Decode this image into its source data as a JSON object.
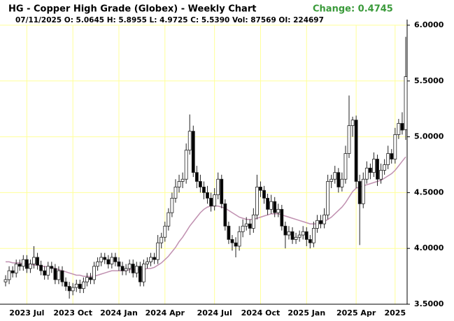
{
  "chart_data": {
    "type": "candlestick",
    "title": "HG - Copper High Grade (Globex) - Weekly Chart",
    "change": "Change: 0.4745",
    "subtitle": "07/11/2025 O: 5.0645 H: 5.8955 L: 4.9725 C: 5.5390 Vol: 87569 OI: 224697",
    "ylim": [
      3.5,
      6.0
    ],
    "yticks": [
      {
        "value": 3.5,
        "label": "3.5000"
      },
      {
        "value": 4.0,
        "label": "4.0000"
      },
      {
        "value": 4.5,
        "label": "4.5000"
      },
      {
        "value": 5.0,
        "label": "5.0000"
      },
      {
        "value": 5.5,
        "label": "5.5000"
      },
      {
        "value": 6.0,
        "label": "6.0000"
      }
    ],
    "grid": true,
    "up_color": "#ffffff",
    "down_color": "#000000",
    "grid_color": "#ffff99",
    "categories": [
      null,
      null,
      null,
      null,
      null,
      null,
      "2023 Jul",
      null,
      null,
      null,
      null,
      null,
      null,
      null,
      null,
      null,
      null,
      null,
      null,
      "2023 Oct",
      null,
      null,
      null,
      null,
      null,
      null,
      null,
      null,
      null,
      null,
      null,
      null,
      "2024 Jan",
      null,
      null,
      null,
      null,
      null,
      null,
      null,
      null,
      null,
      null,
      null,
      null,
      "2024 Apr",
      null,
      null,
      null,
      null,
      null,
      null,
      null,
      null,
      null,
      null,
      null,
      null,
      null,
      "2024 Jul",
      null,
      null,
      null,
      null,
      null,
      null,
      null,
      null,
      null,
      null,
      null,
      null,
      "2024 Oct",
      null,
      null,
      null,
      null,
      null,
      null,
      null,
      null,
      null,
      null,
      null,
      null,
      "2025 Jan",
      null,
      null,
      null,
      null,
      null,
      null,
      null,
      null,
      null,
      null,
      null,
      null,
      null,
      "2025 Apr",
      null,
      null,
      null,
      null,
      null,
      null,
      null,
      null,
      null,
      null,
      "2025",
      null,
      null,
      null
    ],
    "ohlc": [
      [
        3.7,
        3.76,
        3.66,
        3.72
      ],
      [
        3.72,
        3.84,
        3.68,
        3.8
      ],
      [
        3.8,
        3.84,
        3.74,
        3.78
      ],
      [
        3.78,
        3.9,
        3.74,
        3.86
      ],
      [
        3.86,
        3.9,
        3.8,
        3.84
      ],
      [
        3.84,
        3.94,
        3.8,
        3.9
      ],
      [
        3.9,
        3.94,
        3.78,
        3.82
      ],
      [
        3.82,
        3.9,
        3.78,
        3.86
      ],
      [
        3.86,
        4.02,
        3.82,
        3.92
      ],
      [
        3.92,
        3.96,
        3.81,
        3.85
      ],
      [
        3.85,
        3.89,
        3.76,
        3.8
      ],
      [
        3.8,
        3.84,
        3.72,
        3.76
      ],
      [
        3.76,
        3.88,
        3.72,
        3.84
      ],
      [
        3.84,
        3.88,
        3.78,
        3.82
      ],
      [
        3.82,
        3.86,
        3.68,
        3.72
      ],
      [
        3.72,
        3.84,
        3.68,
        3.8
      ],
      [
        3.8,
        3.84,
        3.66,
        3.7
      ],
      [
        3.7,
        3.74,
        3.62,
        3.66
      ],
      [
        3.66,
        3.7,
        3.55,
        3.62
      ],
      [
        3.62,
        3.69,
        3.58,
        3.65
      ],
      [
        3.65,
        3.72,
        3.61,
        3.68
      ],
      [
        3.68,
        3.72,
        3.6,
        3.64
      ],
      [
        3.64,
        3.74,
        3.6,
        3.7
      ],
      [
        3.7,
        3.78,
        3.66,
        3.74
      ],
      [
        3.74,
        3.78,
        3.68,
        3.72
      ],
      [
        3.72,
        3.88,
        3.68,
        3.84
      ],
      [
        3.84,
        3.92,
        3.8,
        3.88
      ],
      [
        3.88,
        3.96,
        3.84,
        3.92
      ],
      [
        3.92,
        3.96,
        3.86,
        3.9
      ],
      [
        3.9,
        3.94,
        3.82,
        3.86
      ],
      [
        3.86,
        3.96,
        3.82,
        3.92
      ],
      [
        3.92,
        3.96,
        3.84,
        3.88
      ],
      [
        3.88,
        3.92,
        3.8,
        3.84
      ],
      [
        3.84,
        3.88,
        3.76,
        3.8
      ],
      [
        3.8,
        3.86,
        3.76,
        3.82
      ],
      [
        3.82,
        3.9,
        3.78,
        3.86
      ],
      [
        3.86,
        3.9,
        3.74,
        3.78
      ],
      [
        3.78,
        3.88,
        3.74,
        3.84
      ],
      [
        3.84,
        3.88,
        3.66,
        3.7
      ],
      [
        3.7,
        3.9,
        3.66,
        3.86
      ],
      [
        3.86,
        3.92,
        3.82,
        3.88
      ],
      [
        3.88,
        3.96,
        3.84,
        3.92
      ],
      [
        3.92,
        3.96,
        3.86,
        3.9
      ],
      [
        3.9,
        4.12,
        3.86,
        4.05
      ],
      [
        4.05,
        4.14,
        4.0,
        4.1
      ],
      [
        4.1,
        4.24,
        4.06,
        4.2
      ],
      [
        4.2,
        4.36,
        4.16,
        4.32
      ],
      [
        4.32,
        4.5,
        4.28,
        4.45
      ],
      [
        4.45,
        4.62,
        4.41,
        4.55
      ],
      [
        4.55,
        4.66,
        4.5,
        4.6
      ],
      [
        4.6,
        4.68,
        4.54,
        4.62
      ],
      [
        4.62,
        4.94,
        4.58,
        4.88
      ],
      [
        4.88,
        5.2,
        4.84,
        5.05
      ],
      [
        5.05,
        5.1,
        4.64,
        4.68
      ],
      [
        4.68,
        4.74,
        4.54,
        4.6
      ],
      [
        4.6,
        4.66,
        4.5,
        4.55
      ],
      [
        4.55,
        4.6,
        4.44,
        4.5
      ],
      [
        4.5,
        4.56,
        4.4,
        4.45
      ],
      [
        4.45,
        4.5,
        4.33,
        4.38
      ],
      [
        4.38,
        4.54,
        4.34,
        4.48
      ],
      [
        4.48,
        4.68,
        4.44,
        4.62
      ],
      [
        4.62,
        4.66,
        4.36,
        4.4
      ],
      [
        4.4,
        4.44,
        4.16,
        4.2
      ],
      [
        4.2,
        4.24,
        4.04,
        4.08
      ],
      [
        4.08,
        4.12,
        3.98,
        4.05
      ],
      [
        4.05,
        4.1,
        3.92,
        4.02
      ],
      [
        4.02,
        4.2,
        3.98,
        4.15
      ],
      [
        4.15,
        4.26,
        4.1,
        4.2
      ],
      [
        4.2,
        4.28,
        4.16,
        4.22
      ],
      [
        4.22,
        4.26,
        4.12,
        4.18
      ],
      [
        4.18,
        4.36,
        4.14,
        4.3
      ],
      [
        4.3,
        4.66,
        4.26,
        4.55
      ],
      [
        4.55,
        4.6,
        4.46,
        4.52
      ],
      [
        4.52,
        4.56,
        4.4,
        4.45
      ],
      [
        4.45,
        4.49,
        4.3,
        4.35
      ],
      [
        4.35,
        4.48,
        4.31,
        4.42
      ],
      [
        4.42,
        4.46,
        4.28,
        4.32
      ],
      [
        4.32,
        4.4,
        4.28,
        4.35
      ],
      [
        4.35,
        4.39,
        4.16,
        4.2
      ],
      [
        4.2,
        4.24,
        4.0,
        4.12
      ],
      [
        4.12,
        4.2,
        4.08,
        4.15
      ],
      [
        4.15,
        4.19,
        4.04,
        4.08
      ],
      [
        4.08,
        4.14,
        4.04,
        4.1
      ],
      [
        4.1,
        4.16,
        4.06,
        4.12
      ],
      [
        4.12,
        4.2,
        4.08,
        4.15
      ],
      [
        4.15,
        4.19,
        4.02,
        4.08
      ],
      [
        4.08,
        4.12,
        4.0,
        4.05
      ],
      [
        4.05,
        4.24,
        4.01,
        4.18
      ],
      [
        4.18,
        4.3,
        4.14,
        4.25
      ],
      [
        4.25,
        4.3,
        4.18,
        4.22
      ],
      [
        4.22,
        4.36,
        4.18,
        4.3
      ],
      [
        4.3,
        4.66,
        4.26,
        4.6
      ],
      [
        4.6,
        4.66,
        4.54,
        4.62
      ],
      [
        4.62,
        4.74,
        4.58,
        4.68
      ],
      [
        4.68,
        4.72,
        4.5,
        4.55
      ],
      [
        4.55,
        4.68,
        4.51,
        4.62
      ],
      [
        4.62,
        4.92,
        4.58,
        4.85
      ],
      [
        4.85,
        5.37,
        4.81,
        5.1
      ],
      [
        5.1,
        5.18,
        5.0,
        5.15
      ],
      [
        5.15,
        5.19,
        4.54,
        4.6
      ],
      [
        4.6,
        4.66,
        4.03,
        4.4
      ],
      [
        4.4,
        4.68,
        4.36,
        4.62
      ],
      [
        4.62,
        4.78,
        4.58,
        4.72
      ],
      [
        4.72,
        4.76,
        4.62,
        4.68
      ],
      [
        4.68,
        4.86,
        4.64,
        4.8
      ],
      [
        4.8,
        4.84,
        4.56,
        4.62
      ],
      [
        4.62,
        4.76,
        4.58,
        4.7
      ],
      [
        4.7,
        4.8,
        4.66,
        4.75
      ],
      [
        4.75,
        4.92,
        4.71,
        4.85
      ],
      [
        4.85,
        4.89,
        4.76,
        4.8
      ],
      [
        4.8,
        5.08,
        4.76,
        5.02
      ],
      [
        5.02,
        5.16,
        4.98,
        5.12
      ],
      [
        5.12,
        5.22,
        5.02,
        5.06
      ],
      [
        5.0645,
        5.8955,
        4.9725,
        5.539
      ]
    ],
    "ma": {
      "color": "#c090b0",
      "values": [
        3.88,
        3.88,
        3.87,
        3.87,
        3.87,
        3.86,
        3.86,
        3.86,
        3.85,
        3.85,
        3.84,
        3.84,
        3.83,
        3.83,
        3.82,
        3.81,
        3.8,
        3.79,
        3.78,
        3.77,
        3.76,
        3.76,
        3.75,
        3.75,
        3.75,
        3.75,
        3.76,
        3.77,
        3.78,
        3.79,
        3.8,
        3.8,
        3.8,
        3.8,
        3.8,
        3.81,
        3.81,
        3.81,
        3.81,
        3.81,
        3.82,
        3.82,
        3.83,
        3.85,
        3.87,
        3.9,
        3.93,
        3.97,
        4.01,
        4.06,
        4.1,
        4.15,
        4.2,
        4.24,
        4.28,
        4.32,
        4.35,
        4.37,
        4.38,
        4.38,
        4.38,
        4.37,
        4.36,
        4.34,
        4.32,
        4.3,
        4.28,
        4.27,
        4.26,
        4.26,
        4.26,
        4.27,
        4.28,
        4.29,
        4.3,
        4.31,
        4.31,
        4.31,
        4.3,
        4.29,
        4.28,
        4.27,
        4.26,
        4.25,
        4.24,
        4.23,
        4.22,
        4.22,
        4.22,
        4.23,
        4.24,
        4.26,
        4.28,
        4.31,
        4.34,
        4.37,
        4.41,
        4.46,
        4.51,
        4.54,
        4.55,
        4.56,
        4.57,
        4.58,
        4.59,
        4.6,
        4.61,
        4.63,
        4.65,
        4.67,
        4.7,
        4.74,
        4.78,
        4.82
      ]
    }
  }
}
